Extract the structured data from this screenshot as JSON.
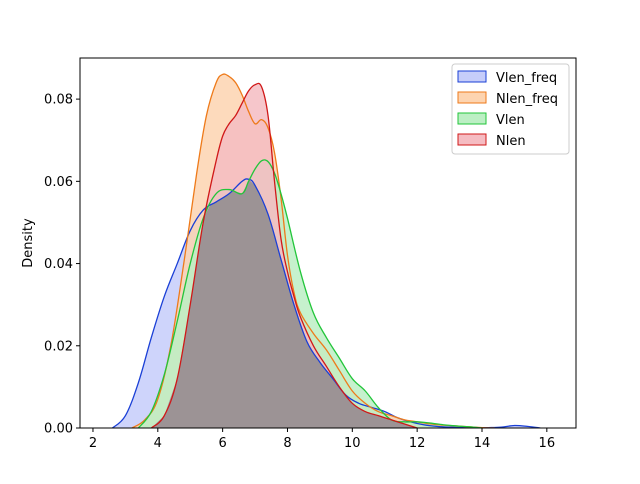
{
  "chart_data": {
    "type": "area",
    "title": "",
    "xlabel": "",
    "ylabel": "Density",
    "xlim": [
      1.6,
      16.9
    ],
    "ylim": [
      0,
      0.09
    ],
    "xticks": [
      2,
      4,
      6,
      8,
      10,
      12,
      14,
      16
    ],
    "xtick_labels": [
      "2",
      "4",
      "6",
      "8",
      "10",
      "12",
      "14",
      "16"
    ],
    "yticks": [
      0.0,
      0.02,
      0.04,
      0.06,
      0.08
    ],
    "ytick_labels": [
      "0.00",
      "0.02",
      "0.04",
      "0.06",
      "0.08"
    ],
    "grid": false,
    "legend": "top-right",
    "series": [
      {
        "name": "Vlen_freq",
        "color": "#1a3fd6",
        "fill": "#c6cdfa",
        "x": [
          2.6,
          3.0,
          3.4,
          3.8,
          4.2,
          4.6,
          5.0,
          5.4,
          5.8,
          6.2,
          6.6,
          6.8,
          7.0,
          7.4,
          7.8,
          8.2,
          8.6,
          9.0,
          9.4,
          9.8,
          10.2,
          10.6,
          11.0,
          11.4,
          11.8,
          12.2,
          12.6,
          13.0,
          13.4,
          13.8,
          14.2,
          14.6,
          15.0,
          15.4,
          15.8
        ],
        "y": [
          0.0,
          0.003,
          0.011,
          0.022,
          0.032,
          0.04,
          0.048,
          0.053,
          0.055,
          0.057,
          0.06,
          0.0605,
          0.059,
          0.052,
          0.041,
          0.03,
          0.021,
          0.016,
          0.012,
          0.008,
          0.006,
          0.005,
          0.004,
          0.0025,
          0.0015,
          0.0008,
          0.0004,
          0.0002,
          0.0001,
          0.0001,
          0.0001,
          0.0002,
          0.0006,
          0.0004,
          0.0
        ]
      },
      {
        "name": "Nlen_freq",
        "color": "#ee7a1a",
        "fill": "#fdd4b0",
        "x": [
          3.2,
          3.6,
          4.0,
          4.4,
          4.8,
          5.2,
          5.5,
          5.8,
          6.0,
          6.2,
          6.4,
          6.6,
          6.8,
          7.0,
          7.2,
          7.4,
          7.6,
          7.8,
          8.0,
          8.2,
          8.4,
          8.8,
          9.2,
          9.6,
          10.0,
          10.4,
          10.8,
          11.2,
          11.6,
          12.0,
          12.4,
          12.8,
          13.2,
          13.6,
          14.0,
          14.4
        ],
        "y": [
          0.0,
          0.002,
          0.007,
          0.02,
          0.04,
          0.062,
          0.076,
          0.084,
          0.086,
          0.0855,
          0.084,
          0.081,
          0.077,
          0.074,
          0.075,
          0.073,
          0.067,
          0.056,
          0.042,
          0.033,
          0.028,
          0.023,
          0.019,
          0.014,
          0.009,
          0.006,
          0.004,
          0.003,
          0.002,
          0.0015,
          0.001,
          0.0007,
          0.0005,
          0.0003,
          0.0001,
          0.0
        ]
      },
      {
        "name": "Vlen",
        "color": "#22c53a",
        "fill": "#bcefc4",
        "x": [
          3.4,
          3.8,
          4.2,
          4.6,
          5.0,
          5.4,
          5.8,
          6.2,
          6.6,
          6.8,
          7.0,
          7.2,
          7.4,
          7.6,
          7.8,
          8.0,
          8.4,
          8.8,
          9.2,
          9.6,
          10.0,
          10.4,
          10.8,
          11.2,
          11.6,
          12.0,
          12.4,
          12.8,
          13.2,
          13.6,
          14.0
        ],
        "y": [
          0.0,
          0.004,
          0.013,
          0.026,
          0.04,
          0.051,
          0.057,
          0.058,
          0.057,
          0.06,
          0.063,
          0.065,
          0.0648,
          0.062,
          0.057,
          0.051,
          0.038,
          0.028,
          0.022,
          0.017,
          0.012,
          0.009,
          0.005,
          0.002,
          0.0015,
          0.0015,
          0.0012,
          0.0008,
          0.0005,
          0.0003,
          0.0
        ]
      },
      {
        "name": "Nlen",
        "color": "#d01818",
        "fill": "#f5bcc2",
        "x": [
          3.8,
          4.2,
          4.6,
          5.0,
          5.4,
          5.8,
          6.0,
          6.2,
          6.4,
          6.6,
          6.8,
          7.0,
          7.2,
          7.4,
          7.6,
          7.8,
          8.0,
          8.2,
          8.4,
          8.8,
          9.2,
          9.6,
          10.0,
          10.4,
          10.8,
          11.2,
          11.6,
          12.0
        ],
        "y": [
          0.0,
          0.003,
          0.012,
          0.03,
          0.05,
          0.065,
          0.071,
          0.074,
          0.076,
          0.079,
          0.082,
          0.0835,
          0.083,
          0.076,
          0.06,
          0.046,
          0.038,
          0.032,
          0.027,
          0.02,
          0.015,
          0.01,
          0.006,
          0.004,
          0.003,
          0.002,
          0.001,
          0.0
        ]
      }
    ]
  },
  "overlap_fill": "#9c9395"
}
